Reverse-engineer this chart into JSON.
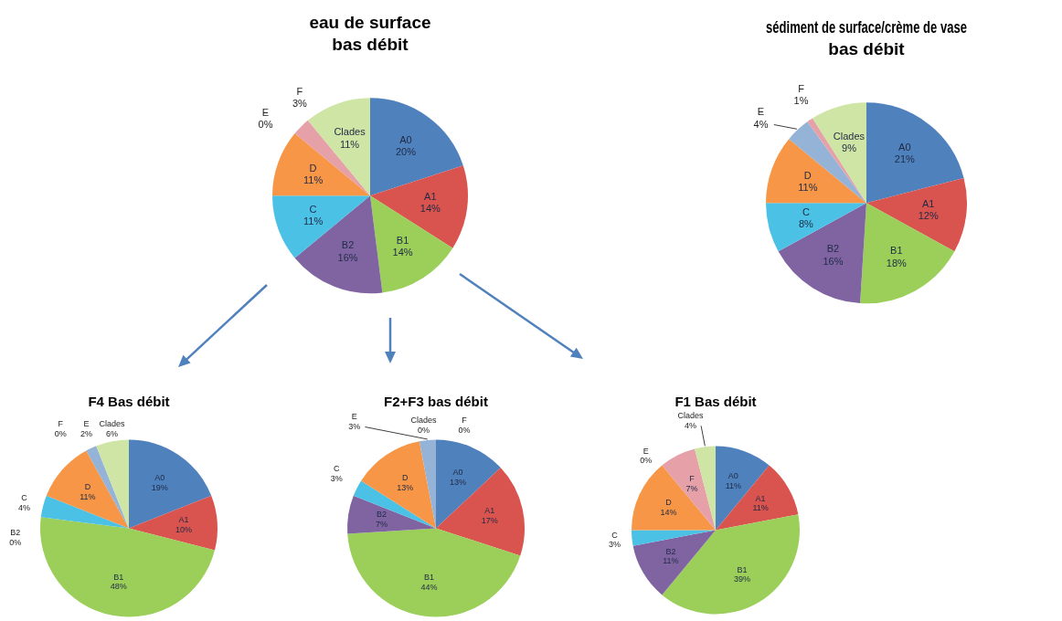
{
  "chart_data": [
    {
      "type": "pie",
      "title": "eau de surface",
      "subtitle": "bas débit",
      "categories": [
        "A0",
        "A1",
        "B1",
        "B2",
        "C",
        "D",
        "E",
        "F",
        "Clades"
      ],
      "values": [
        20,
        14,
        14,
        16,
        11,
        11,
        0,
        3,
        11
      ],
      "value_labels": [
        "20%",
        "14%",
        "14%",
        "16%",
        "11%",
        "11%",
        "0%",
        "3%",
        "11%"
      ],
      "colors": [
        "#4f81bd",
        "#d9534f",
        "#9bcf5a",
        "#8064a2",
        "#4bc1e6",
        "#f79646",
        "#95b3d7",
        "#e6a0a8",
        "#cfe5a5"
      ]
    },
    {
      "type": "pie",
      "title": "sédiment de surface/crème de vase",
      "subtitle": "bas débit",
      "categories": [
        "A0",
        "A1",
        "B1",
        "B2",
        "C",
        "D",
        "E",
        "F",
        "Clades"
      ],
      "values": [
        21,
        12,
        18,
        16,
        8,
        11,
        4,
        1,
        9
      ],
      "value_labels": [
        "21%",
        "12%",
        "18%",
        "16%",
        "8%",
        "11%",
        "4%",
        "1%",
        "9%"
      ],
      "colors": [
        "#4f81bd",
        "#d9534f",
        "#9bcf5a",
        "#8064a2",
        "#4bc1e6",
        "#f79646",
        "#95b3d7",
        "#e6a0a8",
        "#cfe5a5"
      ]
    },
    {
      "type": "pie",
      "title": "F4 Bas débit",
      "categories": [
        "A0",
        "A1",
        "B1",
        "B2",
        "C",
        "D",
        "E",
        "F",
        "Clades"
      ],
      "values": [
        19,
        10,
        48,
        0,
        4,
        11,
        2,
        0,
        6
      ],
      "value_labels": [
        "19%",
        "10%",
        "48%",
        "0%",
        "4%",
        "11%",
        "2%",
        "0%",
        "6%"
      ],
      "colors": [
        "#4f81bd",
        "#d9534f",
        "#9bcf5a",
        "#8064a2",
        "#4bc1e6",
        "#f79646",
        "#95b3d7",
        "#e6a0a8",
        "#cfe5a5"
      ]
    },
    {
      "type": "pie",
      "title": "F2+F3 bas débit",
      "categories": [
        "A0",
        "A1",
        "B1",
        "B2",
        "C",
        "D",
        "E",
        "F",
        "Clades"
      ],
      "values": [
        13,
        17,
        44,
        7,
        3,
        13,
        3,
        0,
        0
      ],
      "value_labels": [
        "13%",
        "17%",
        "44%",
        "7%",
        "3%",
        "13%",
        "3%",
        "0%",
        "0%"
      ],
      "colors": [
        "#4f81bd",
        "#d9534f",
        "#9bcf5a",
        "#8064a2",
        "#4bc1e6",
        "#f79646",
        "#95b3d7",
        "#e6a0a8",
        "#cfe5a5"
      ]
    },
    {
      "type": "pie",
      "title": "F1 Bas débit",
      "categories": [
        "A0",
        "A1",
        "B1",
        "B2",
        "C",
        "D",
        "E",
        "F",
        "Clades"
      ],
      "values": [
        11,
        11,
        39,
        11,
        3,
        14,
        0,
        7,
        4
      ],
      "value_labels": [
        "11%",
        "11%",
        "39%",
        "11%",
        "3%",
        "14%",
        "0%",
        "7%",
        "4%"
      ],
      "colors": [
        "#4f81bd",
        "#d9534f",
        "#9bcf5a",
        "#8064a2",
        "#4bc1e6",
        "#f79646",
        "#95b3d7",
        "#e6a0a8",
        "#cfe5a5"
      ]
    }
  ]
}
